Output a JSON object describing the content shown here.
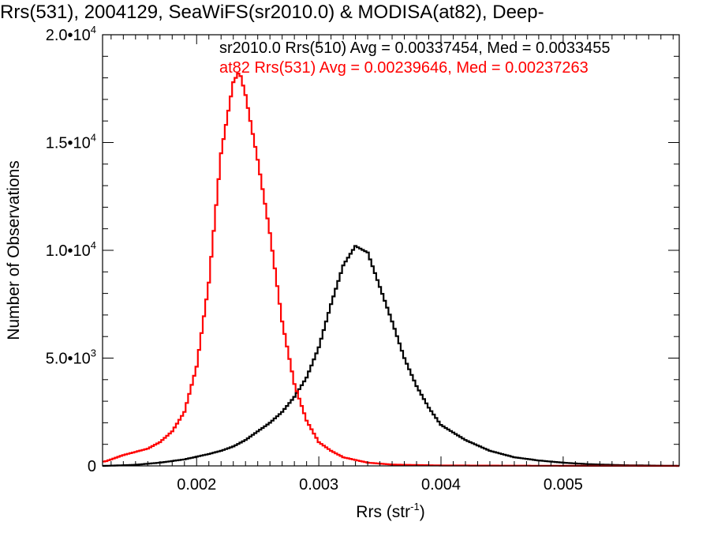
{
  "chart_data": {
    "type": "line",
    "title": "Rrs(531), 2004129, SeaWiFS(sr2010.0) & MODISA(at82), Deep-",
    "xlabel": "Rrs (str",
    "xlabel_sup": "-1",
    "xlabel_close": ")",
    "ylabel": "Number of Observations",
    "xlim": [
      0.00123,
      0.00595
    ],
    "ylim": [
      0,
      20000
    ],
    "grid": false,
    "x_ticks": [
      {
        "value": 0.002,
        "label": "0.002"
      },
      {
        "value": 0.003,
        "label": "0.003"
      },
      {
        "value": 0.004,
        "label": "0.004"
      },
      {
        "value": 0.005,
        "label": "0.005"
      }
    ],
    "y_ticks": [
      {
        "value": 0,
        "label": "0",
        "sup": ""
      },
      {
        "value": 5000,
        "label": "5.0•10",
        "sup": "3"
      },
      {
        "value": 10000,
        "label": "1.0•10",
        "sup": "4"
      },
      {
        "value": 15000,
        "label": "1.5•10",
        "sup": "4"
      },
      {
        "value": 20000,
        "label": "2.0•10",
        "sup": "4"
      }
    ],
    "annotations": [
      {
        "text": "sr2010.0 Rrs(510) Avg = 0.00337454, Med = 0.0033455",
        "color": "#000000"
      },
      {
        "text": "at82 Rrs(531) Avg = 0.00239646, Med = 0.00237263",
        "color": "#ff0000"
      }
    ],
    "series": [
      {
        "color": "#000000",
        "x": [
          0.00125,
          0.0015,
          0.0017,
          0.0019,
          0.0021,
          0.0022,
          0.0023,
          0.0024,
          0.0025,
          0.0026,
          0.0027,
          0.0028,
          0.0029,
          0.003,
          0.0031,
          0.0032,
          0.0033,
          0.0034,
          0.0035,
          0.0036,
          0.0037,
          0.0038,
          0.0039,
          0.004,
          0.0042,
          0.0044,
          0.0046,
          0.0048,
          0.005,
          0.0052,
          0.0055,
          0.00595
        ],
        "values": [
          0,
          50,
          150,
          300,
          550,
          700,
          900,
          1200,
          1600,
          2000,
          2500,
          3200,
          4100,
          5500,
          7500,
          9300,
          10200,
          9900,
          8300,
          6700,
          5000,
          3700,
          2700,
          1900,
          1200,
          700,
          400,
          250,
          150,
          80,
          30,
          0
        ]
      },
      {
        "color": "#ff0000",
        "x": [
          0.00125,
          0.0014,
          0.0016,
          0.0017,
          0.0018,
          0.0019,
          0.002,
          0.0021,
          0.0022,
          0.0023,
          0.00235,
          0.0024,
          0.0025,
          0.0026,
          0.0027,
          0.0028,
          0.0029,
          0.003,
          0.0031,
          0.0032,
          0.0034,
          0.0036,
          0.004,
          0.005,
          0.00595
        ],
        "values": [
          200,
          500,
          800,
          1100,
          1600,
          2500,
          4600,
          8500,
          14500,
          17800,
          18300,
          17200,
          14200,
          10800,
          6700,
          3800,
          2100,
          1100,
          700,
          400,
          150,
          60,
          20,
          5,
          0
        ]
      }
    ]
  }
}
